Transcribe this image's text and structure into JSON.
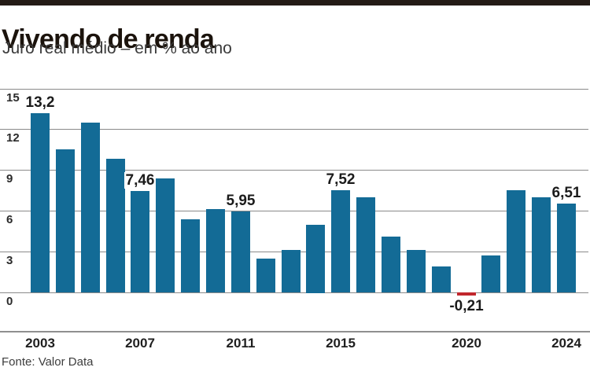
{
  "header": {
    "title": "Vivendo de renda",
    "subtitle": "Juro real médio – em % ao ano"
  },
  "footer": {
    "source": "Fonte: Valor Data"
  },
  "chart_data": {
    "type": "bar",
    "title": "Vivendo de renda",
    "subtitle": "Juro real médio – em % ao ano",
    "source": "Fonte: Valor Data",
    "unit": "% ao ano",
    "categories": [
      2003,
      2004,
      2005,
      2006,
      2007,
      2008,
      2009,
      2010,
      2011,
      2012,
      2013,
      2014,
      2015,
      2016,
      2017,
      2018,
      2019,
      2020,
      2021,
      2022,
      2023,
      2024
    ],
    "values": [
      13.2,
      10.5,
      12.5,
      9.8,
      7.46,
      8.4,
      5.4,
      6.1,
      5.95,
      2.5,
      3.1,
      5.0,
      7.52,
      7.0,
      4.1,
      3.1,
      1.9,
      -0.21,
      2.7,
      7.5,
      7.0,
      6.51
    ],
    "data_labels": [
      {
        "year": 2003,
        "text": "13,2"
      },
      {
        "year": 2007,
        "text": "7,46"
      },
      {
        "year": 2011,
        "text": "5,95"
      },
      {
        "year": 2015,
        "text": "7,52"
      },
      {
        "year": 2020,
        "text": "-0,21"
      },
      {
        "year": 2024,
        "text": "6,51"
      }
    ],
    "y_ticks": [
      15,
      12,
      9,
      6,
      3,
      0
    ],
    "ylim": [
      -0.5,
      15.5
    ],
    "x_tick_years": [
      2003,
      2007,
      2011,
      2015,
      2020,
      2024
    ],
    "grid": "horizontal",
    "legend": "none",
    "colors": {
      "bar": "#136b96",
      "negative_bar": "#c1272d",
      "grid": "#8a8a8a",
      "axis": "#8f8f8f",
      "top_band": "#241b16"
    }
  }
}
